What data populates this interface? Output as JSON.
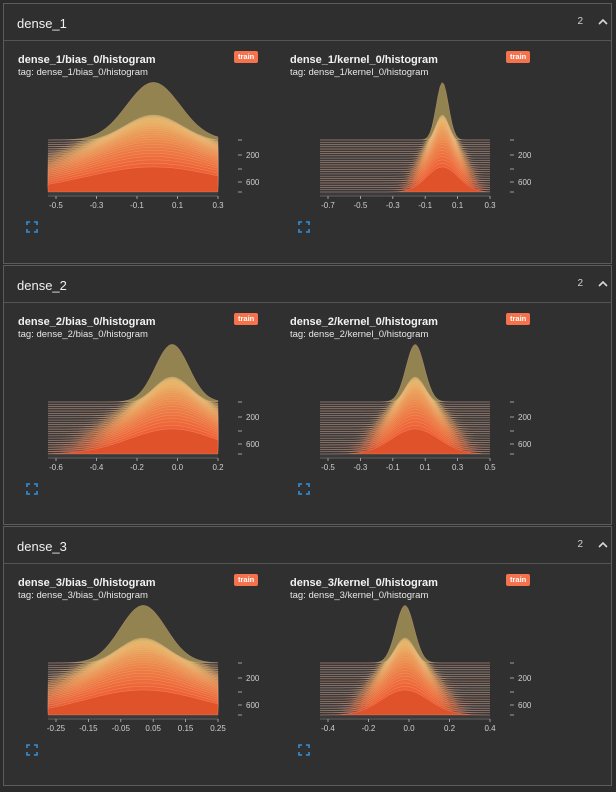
{
  "sections": [
    {
      "title": "dense_1",
      "count": "2",
      "cards": [
        {
          "title": "dense_1/bias_0/histogram",
          "tag": "tag: dense_1/bias_0/histogram",
          "badge": "train",
          "x_ticks": [
            "-0.5",
            "-0.3",
            "-0.1",
            "0.1",
            "0.3"
          ],
          "y_ticks": [
            "200",
            "600"
          ],
          "peak": 0.62,
          "spread": 0.35
        },
        {
          "title": "dense_1/kernel_0/histogram",
          "tag": "tag: dense_1/kernel_0/histogram",
          "badge": "train",
          "x_ticks": [
            "-0.7",
            "-0.5",
            "-0.3",
            "-0.1",
            "0.1",
            "0.3"
          ],
          "y_ticks": [
            "200",
            "600"
          ],
          "peak": 0.72,
          "spread": 0.08
        }
      ]
    },
    {
      "title": "dense_2",
      "count": "2",
      "cards": [
        {
          "title": "dense_2/bias_0/histogram",
          "tag": "tag: dense_2/bias_0/histogram",
          "badge": "train",
          "x_ticks": [
            "-0.6",
            "-0.4",
            "-0.2",
            "0.0",
            "0.2"
          ],
          "y_ticks": [
            "200",
            "600"
          ],
          "peak": 0.73,
          "spread": 0.22
        },
        {
          "title": "dense_2/kernel_0/histogram",
          "tag": "tag: dense_2/kernel_0/histogram",
          "badge": "train",
          "x_ticks": [
            "-0.5",
            "-0.3",
            "-0.1",
            "0.1",
            "0.3",
            "0.5"
          ],
          "y_ticks": [
            "200",
            "600"
          ],
          "peak": 0.56,
          "spread": 0.12
        }
      ]
    },
    {
      "title": "dense_3",
      "count": "2",
      "cards": [
        {
          "title": "dense_3/bias_0/histogram",
          "tag": "tag: dense_3/bias_0/histogram",
          "badge": "train",
          "x_ticks": [
            "-0.25",
            "-0.15",
            "-0.05",
            "0.05",
            "0.15",
            "0.25"
          ],
          "y_ticks": [
            "200",
            "600"
          ],
          "peak": 0.56,
          "spread": 0.3
        },
        {
          "title": "dense_3/kernel_0/histogram",
          "tag": "tag: dense_3/kernel_0/histogram",
          "badge": "train",
          "x_ticks": [
            "-0.4",
            "-0.2",
            "0.0",
            "0.2",
            "0.4"
          ],
          "y_ticks": [
            "200",
            "600"
          ],
          "peak": 0.5,
          "spread": 0.12
        }
      ]
    }
  ],
  "colors": {
    "background": "#2b2b2b",
    "panel": "#303030",
    "accent": "#f4734d",
    "histogram_fill": "#e0522a",
    "expand_icon": "#2f8fdb"
  },
  "icons": {
    "collapse": "chevron-up-icon",
    "expand": "fullscreen-icon"
  }
}
